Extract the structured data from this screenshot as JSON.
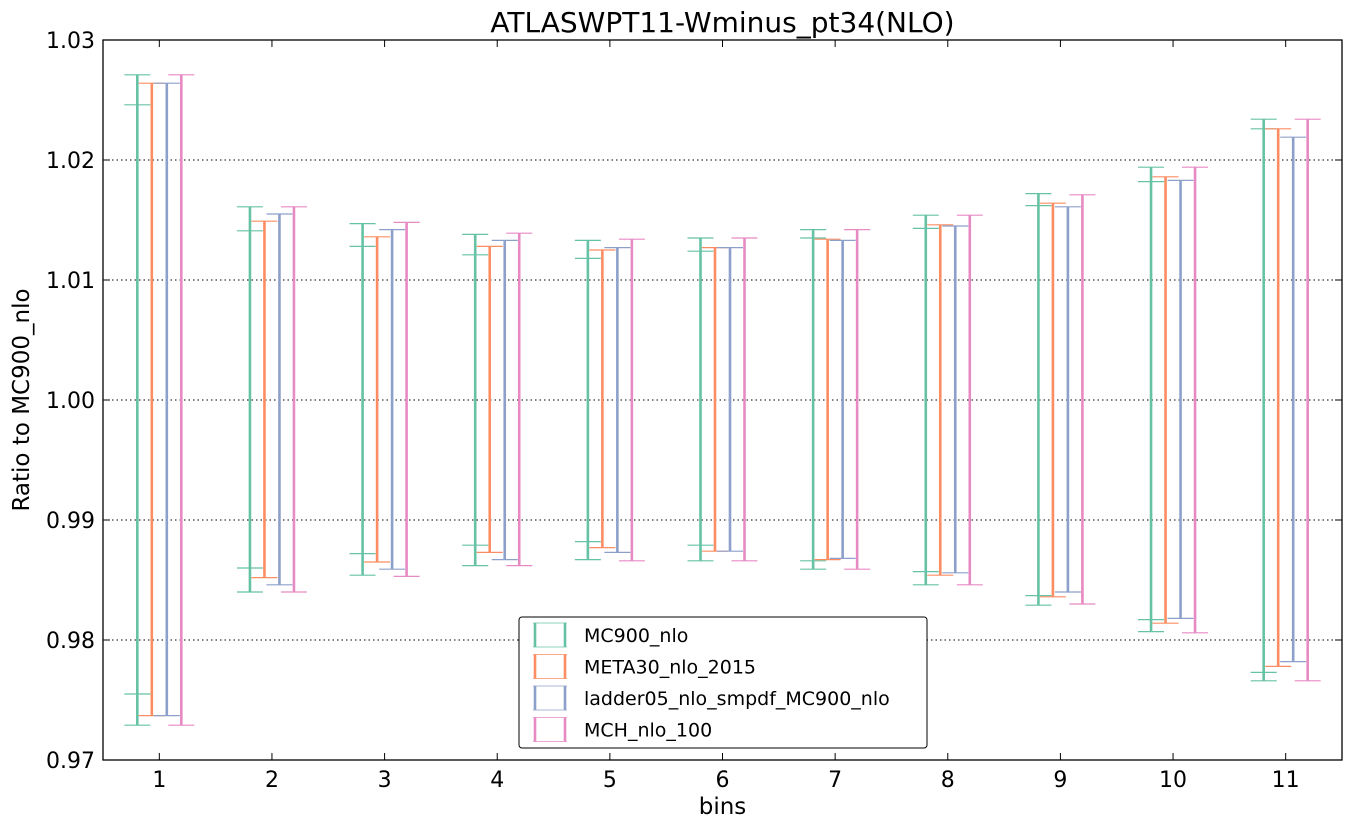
{
  "chart_data": {
    "type": "errorbar",
    "title": "ATLASWPT11-Wminus_pt34(NLO)",
    "xlabel": "bins",
    "ylabel": "Ratio to MC900_nlo",
    "ylim": [
      0.97,
      1.03
    ],
    "xlim": [
      0.5,
      11.5
    ],
    "yticks": [
      "0.97",
      "0.98",
      "0.99",
      "1.00",
      "1.01",
      "1.02",
      "1.03"
    ],
    "categories": [
      "1",
      "2",
      "3",
      "4",
      "5",
      "6",
      "7",
      "8",
      "9",
      "10",
      "11"
    ],
    "grid": "horizontal dotted",
    "legend_position": "lower center",
    "series": [
      {
        "name": "MC900_nlo",
        "color": "#66c2a5",
        "outer": [
          [
            0.9729,
            1.0271
          ],
          [
            0.984,
            1.0161
          ],
          [
            0.9854,
            1.0147
          ],
          [
            0.9862,
            1.0138
          ],
          [
            0.9867,
            1.0133
          ],
          [
            0.9866,
            1.0135
          ],
          [
            0.9859,
            1.0142
          ],
          [
            0.9846,
            1.0154
          ],
          [
            0.9829,
            1.0172
          ],
          [
            0.9807,
            1.0194
          ],
          [
            0.9766,
            1.0234
          ]
        ],
        "inner": [
          [
            0.9755,
            1.0246
          ],
          [
            0.986,
            1.0141
          ],
          [
            0.9872,
            1.0128
          ],
          [
            0.9879,
            1.0121
          ],
          [
            0.9882,
            1.0118
          ],
          [
            0.9879,
            1.0124
          ],
          [
            0.9866,
            1.0135
          ],
          [
            0.9857,
            1.0143
          ],
          [
            0.9837,
            1.0162
          ],
          [
            0.9817,
            1.0182
          ],
          [
            0.9773,
            1.0226
          ]
        ]
      },
      {
        "name": "META30_nlo_2015",
        "color": "#fc8d62",
        "outer": [
          [
            0.9737,
            1.0264
          ],
          [
            0.9852,
            1.0149
          ],
          [
            0.9865,
            1.0136
          ],
          [
            0.9873,
            1.0128
          ],
          [
            0.9877,
            1.0125
          ],
          [
            0.9874,
            1.0127
          ],
          [
            0.9867,
            1.0134
          ],
          [
            0.9854,
            1.0146
          ],
          [
            0.9836,
            1.0164
          ],
          [
            0.9814,
            1.0186
          ],
          [
            0.9778,
            1.0226
          ]
        ],
        "inner": [
          [
            0.9737,
            1.0264
          ],
          [
            0.9852,
            1.0149
          ],
          [
            0.9865,
            1.0136
          ],
          [
            0.9873,
            1.0128
          ],
          [
            0.9877,
            1.0125
          ],
          [
            0.9874,
            1.0127
          ],
          [
            0.9867,
            1.0134
          ],
          [
            0.9854,
            1.0146
          ],
          [
            0.9836,
            1.0164
          ],
          [
            0.9814,
            1.0186
          ],
          [
            0.9778,
            1.0226
          ]
        ]
      },
      {
        "name": "ladder05_nlo_smpdf_MC900_nlo",
        "color": "#8da0cb",
        "outer": [
          [
            0.9737,
            1.0264
          ],
          [
            0.9846,
            1.0155
          ],
          [
            0.9859,
            1.0142
          ],
          [
            0.9867,
            1.0133
          ],
          [
            0.9873,
            1.0127
          ],
          [
            0.9874,
            1.0127
          ],
          [
            0.9868,
            1.0133
          ],
          [
            0.9856,
            1.0145
          ],
          [
            0.984,
            1.0161
          ],
          [
            0.9818,
            1.0183
          ],
          [
            0.9782,
            1.0219
          ]
        ],
        "inner": [
          [
            0.9737,
            1.0264
          ],
          [
            0.9846,
            1.0155
          ],
          [
            0.9859,
            1.0142
          ],
          [
            0.9867,
            1.0133
          ],
          [
            0.9873,
            1.0127
          ],
          [
            0.9874,
            1.0127
          ],
          [
            0.9868,
            1.0133
          ],
          [
            0.9856,
            1.0145
          ],
          [
            0.984,
            1.0161
          ],
          [
            0.9818,
            1.0183
          ],
          [
            0.9782,
            1.0219
          ]
        ]
      },
      {
        "name": "MCH_nlo_100",
        "color": "#e78ac3",
        "outer": [
          [
            0.9729,
            1.0271
          ],
          [
            0.984,
            1.0161
          ],
          [
            0.9853,
            1.0148
          ],
          [
            0.9862,
            1.0139
          ],
          [
            0.9866,
            1.0134
          ],
          [
            0.9866,
            1.0135
          ],
          [
            0.9859,
            1.0142
          ],
          [
            0.9846,
            1.0154
          ],
          [
            0.983,
            1.0171
          ],
          [
            0.9806,
            1.0194
          ],
          [
            0.9766,
            1.0234
          ]
        ],
        "inner": [
          [
            0.9729,
            1.0271
          ],
          [
            0.984,
            1.0161
          ],
          [
            0.9853,
            1.0148
          ],
          [
            0.9862,
            1.0139
          ],
          [
            0.9866,
            1.0134
          ],
          [
            0.9866,
            1.0135
          ],
          [
            0.9859,
            1.0142
          ],
          [
            0.9846,
            1.0154
          ],
          [
            0.983,
            1.0171
          ],
          [
            0.9806,
            1.0194
          ],
          [
            0.9766,
            1.0234
          ]
        ]
      }
    ]
  }
}
